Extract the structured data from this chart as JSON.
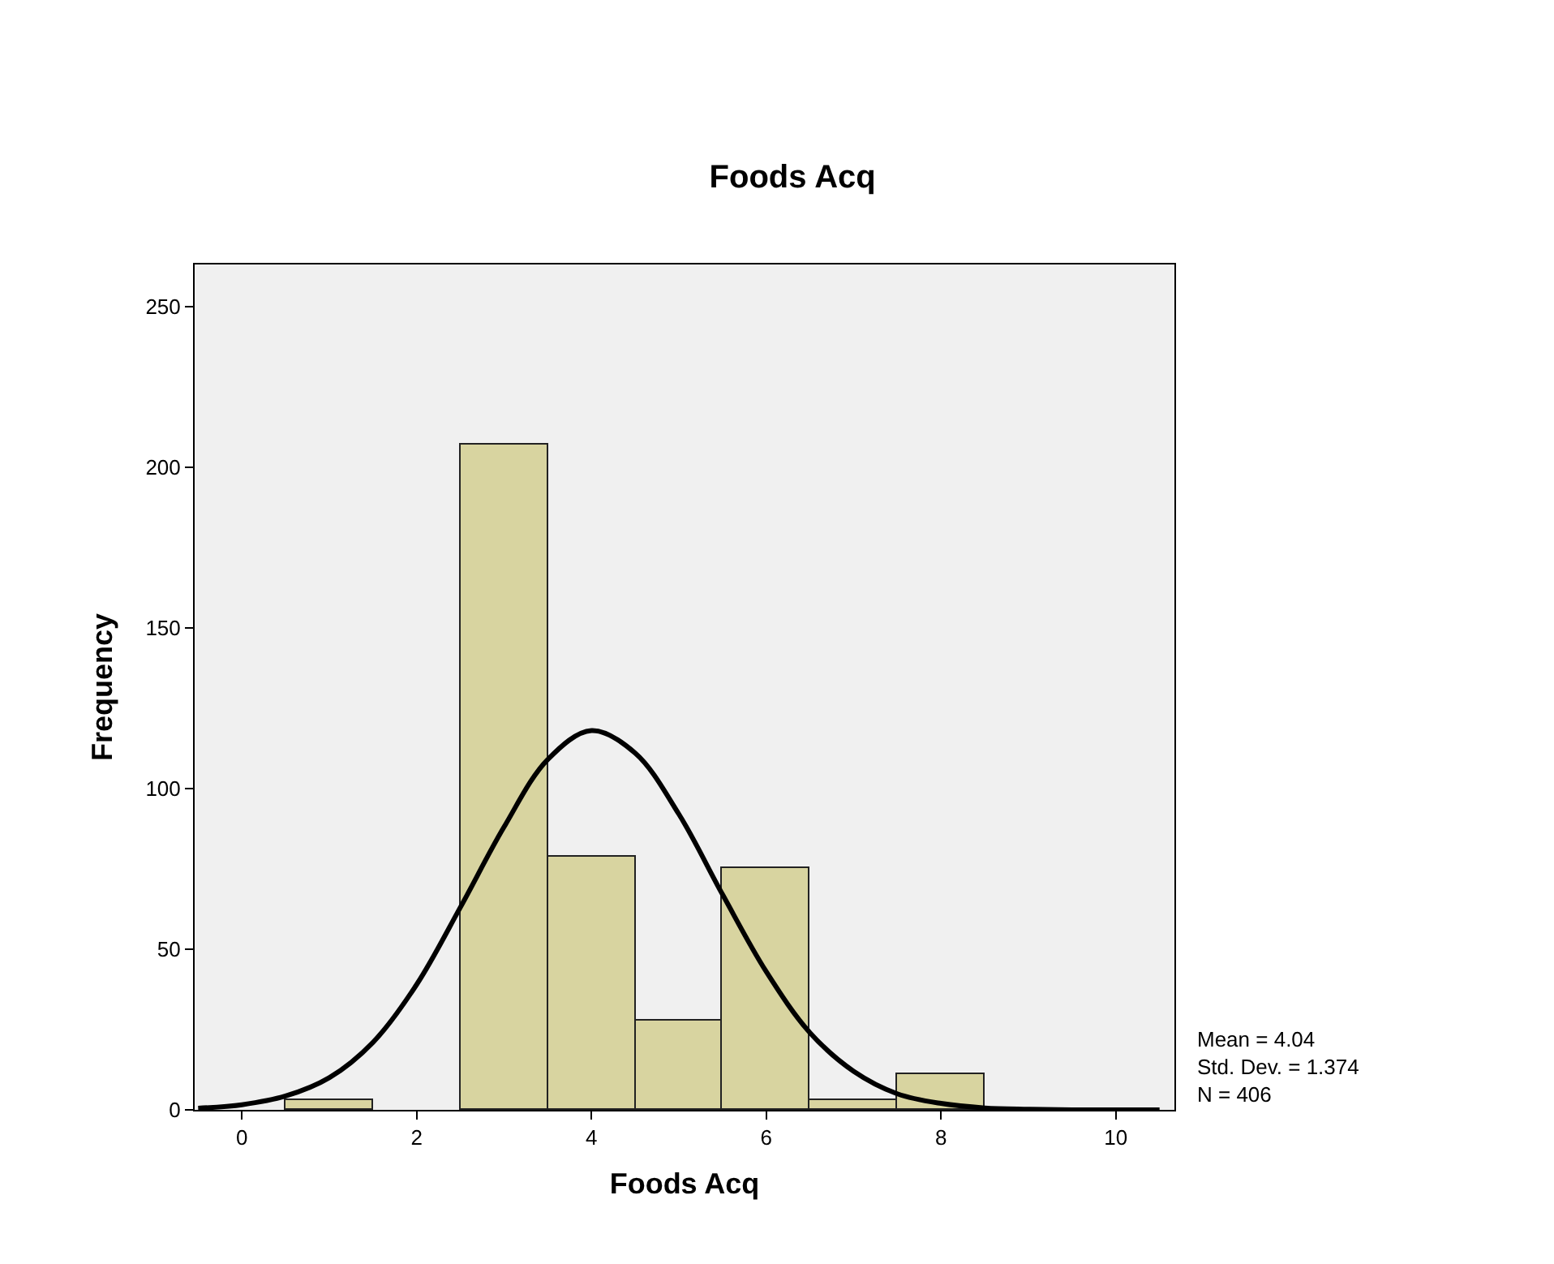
{
  "chart_data": {
    "type": "histogram",
    "title": "Foods Acq",
    "xlabel": "Foods Acq",
    "ylabel": "Frequency",
    "bins": [
      0.5,
      1.5,
      2.5,
      3.5,
      4.5,
      5.5,
      6.5,
      7.5,
      8.5
    ],
    "values": [
      3,
      0,
      207,
      79,
      28,
      75,
      3,
      11
    ],
    "color": "#d8d4a0",
    "series": [
      {
        "type": "line",
        "color": "#000000",
        "x": [
          -0.5,
          0,
          0.5,
          1,
          1.5,
          2,
          2.5,
          3,
          3.5,
          4,
          4.5,
          5,
          5.5,
          6,
          6.5,
          7,
          7.5,
          8,
          8.5,
          9,
          9.5,
          10,
          10.5
        ],
        "values": [
          0.5,
          1.6,
          4.3,
          10,
          21,
          39,
          63,
          88,
          109,
          118,
          111,
          92,
          67,
          43,
          24,
          12,
          5,
          2,
          0.6,
          0.2,
          0,
          0,
          0
        ]
      }
    ],
    "xlim": [
      -0.54,
      10.67
    ],
    "xticks": [
      0,
      2,
      4,
      6,
      8,
      10
    ],
    "ylim": [
      0,
      263
    ],
    "yticks": [
      0,
      50,
      100,
      150,
      200,
      250
    ],
    "grid": false,
    "marker": "none",
    "line_style": "solid",
    "annotations": [
      "Mean = 4.04\nStd. Dev. = 1.374\nN = 406"
    ]
  }
}
